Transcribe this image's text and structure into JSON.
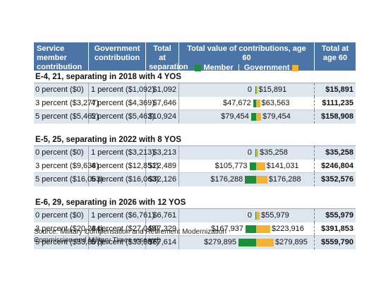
{
  "header": {
    "col1": "Service member contribution",
    "col2": "Government contribution",
    "col3": "Total at separation",
    "col4": "Total value of contributions, age 60",
    "legend_member": "Member",
    "legend_government": "Government",
    "col5": "Total at age 60",
    "colors": {
      "member": "#1e8c3a",
      "government": "#f2b138"
    }
  },
  "groups": [
    {
      "title": "E-4, 21, separating in 2018 with 4 YOS",
      "rows": [
        {
          "member": "0 percent ($0)",
          "government": "1 percent ($1,092)",
          "total_sep": "$1,092",
          "member_60": "0",
          "gov_60": "$15,891",
          "member_60_value": 0,
          "gov_60_value": 15891,
          "total_60": "$15,891"
        },
        {
          "member": "3 percent ($3,277)",
          "government": "4 percent ($4,369)",
          "total_sep": "$7,646",
          "member_60": "$47,672",
          "gov_60": "$63,563",
          "member_60_value": 47672,
          "gov_60_value": 63563,
          "total_60": "$111,235"
        },
        {
          "member": "5 percent ($5,462)",
          "government": "5 percent ($5,462)",
          "total_sep": "$10,924",
          "member_60": "$79,454",
          "gov_60": "$79,454",
          "member_60_value": 79454,
          "gov_60_value": 79454,
          "total_60": "$158,908"
        }
      ]
    },
    {
      "title": "E-5, 25, separating in 2022 with 8 YOS",
      "rows": [
        {
          "member": "0 percent ($0)",
          "government": "1 percent ($3,213)",
          "total_sep": "$3,213",
          "member_60": "0",
          "gov_60": "$35,258",
          "member_60_value": 0,
          "gov_60_value": 35258,
          "total_60": "$35,258"
        },
        {
          "member": "3 percent ($9,638)",
          "government": "4 percent ($12,851)",
          "total_sep": "$22,489",
          "member_60": "$105,773",
          "gov_60": "$141,031",
          "member_60_value": 105773,
          "gov_60_value": 141031,
          "total_60": "$246,804"
        },
        {
          "member": "5 percent ($16,063)",
          "government": "5 percent ($16,063)",
          "total_sep": "$32,126",
          "member_60": "$176,288",
          "gov_60": "$176,288",
          "member_60_value": 176288,
          "gov_60_value": 176288,
          "total_60": "$352,576"
        }
      ]
    },
    {
      "title": "E-6, 29, separating in 2026 with 12 YOS",
      "rows": [
        {
          "member": "0 percent ($0)",
          "government": "1 percent ($6,761)",
          "total_sep": "$6,761",
          "member_60": "0",
          "gov_60": "$55,979",
          "member_60_value": 0,
          "gov_60_value": 55979,
          "total_60": "$55,979"
        },
        {
          "member": "3 percent ($20,284)",
          "government": "4 percent ($27,045)",
          "total_sep": "$47,329",
          "member_60": "$167,937",
          "gov_60": "$223,916",
          "member_60_value": 167937,
          "gov_60_value": 223916,
          "total_60": "$391,853"
        },
        {
          "member": "5 percent ($33,807)",
          "government": "5 percent ($33,807)",
          "total_sep": "$67,614",
          "member_60": "$279,895",
          "gov_60": "$279,895",
          "member_60_value": 279895,
          "gov_60_value": 279895,
          "total_60": "$559,790"
        }
      ]
    }
  ],
  "source_line1": "Source: Military Compensation and Retirement Modernization",
  "source_line2": "Commission and Military Times research"
}
